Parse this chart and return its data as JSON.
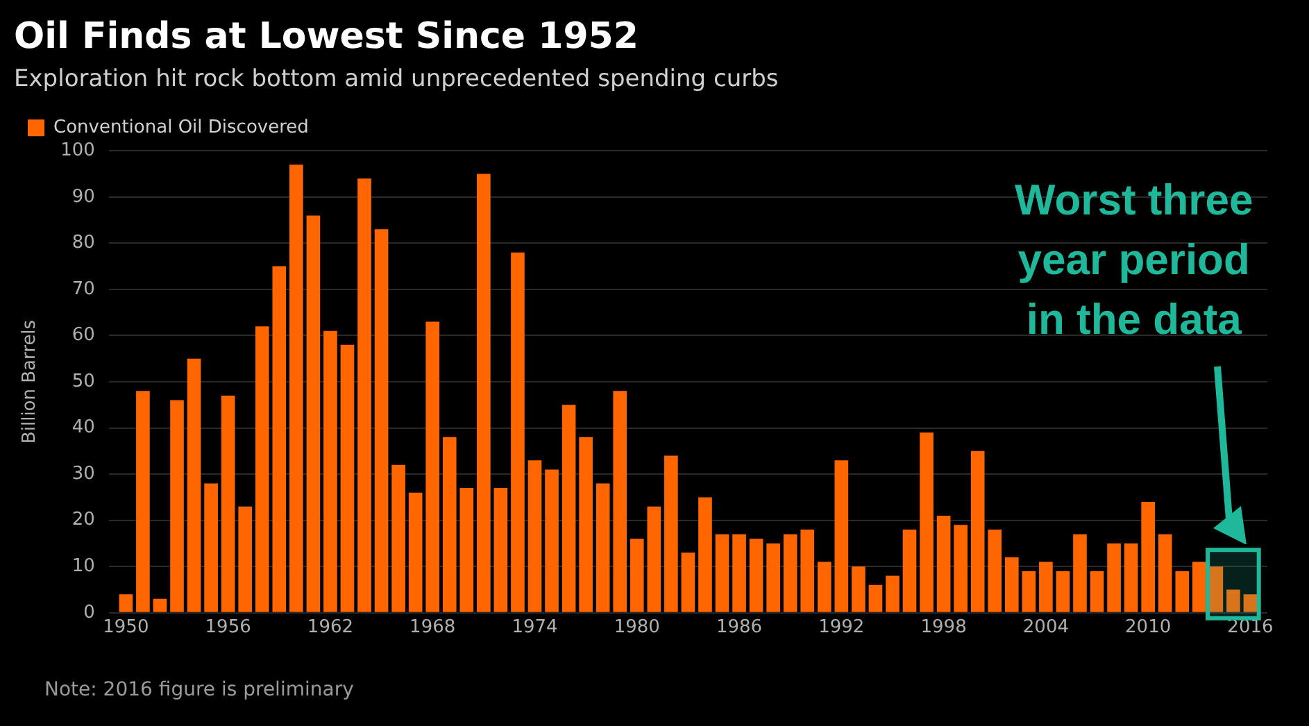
{
  "chart_data": {
    "type": "bar",
    "title": "Oil Finds at Lowest Since 1952",
    "subtitle": "Exploration hit rock bottom amid unprecedented spending curbs",
    "ylabel": "Billion Barrels",
    "x": [
      1950,
      1951,
      1952,
      1953,
      1954,
      1955,
      1956,
      1957,
      1958,
      1959,
      1960,
      1961,
      1962,
      1963,
      1964,
      1965,
      1966,
      1967,
      1968,
      1969,
      1970,
      1971,
      1972,
      1973,
      1974,
      1975,
      1976,
      1977,
      1978,
      1979,
      1980,
      1981,
      1982,
      1983,
      1984,
      1985,
      1986,
      1987,
      1988,
      1989,
      1990,
      1991,
      1992,
      1993,
      1994,
      1995,
      1996,
      1997,
      1998,
      1999,
      2000,
      2001,
      2002,
      2003,
      2004,
      2005,
      2006,
      2007,
      2008,
      2009,
      2010,
      2011,
      2012,
      2013,
      2014,
      2015,
      2016
    ],
    "series": [
      {
        "name": "Conventional Oil Discovered",
        "color": "#ff6600",
        "values": [
          4,
          48,
          3,
          46,
          55,
          28,
          47,
          23,
          62,
          75,
          97,
          86,
          61,
          58,
          94,
          83,
          32,
          26,
          63,
          38,
          27,
          95,
          27,
          78,
          33,
          31,
          45,
          38,
          28,
          48,
          16,
          23,
          34,
          13,
          25,
          17,
          17,
          16,
          15,
          17,
          18,
          11,
          33,
          10,
          6,
          8,
          18,
          39,
          21,
          19,
          35,
          18,
          12,
          9,
          11,
          9,
          17,
          9,
          15,
          15,
          24,
          17,
          9,
          11,
          10,
          5,
          4
        ]
      }
    ],
    "xlim": [
      1949,
      2017
    ],
    "xticks": [
      1950,
      1956,
      1962,
      1968,
      1974,
      1980,
      1986,
      1992,
      1998,
      2004,
      2010,
      2016
    ],
    "ylim": [
      0,
      100
    ],
    "yticks": [
      0,
      10,
      20,
      30,
      40,
      50,
      60,
      70,
      80,
      90,
      100
    ],
    "grid": "y",
    "legend": "top left",
    "bands": [
      {
        "axis": "x",
        "from": 2013.5,
        "to": 2016.5,
        "label": "Worst three year period in the data",
        "color": "#1fb89a"
      }
    ],
    "annotations": [
      "Note: 2016 figure is preliminary"
    ]
  }
}
